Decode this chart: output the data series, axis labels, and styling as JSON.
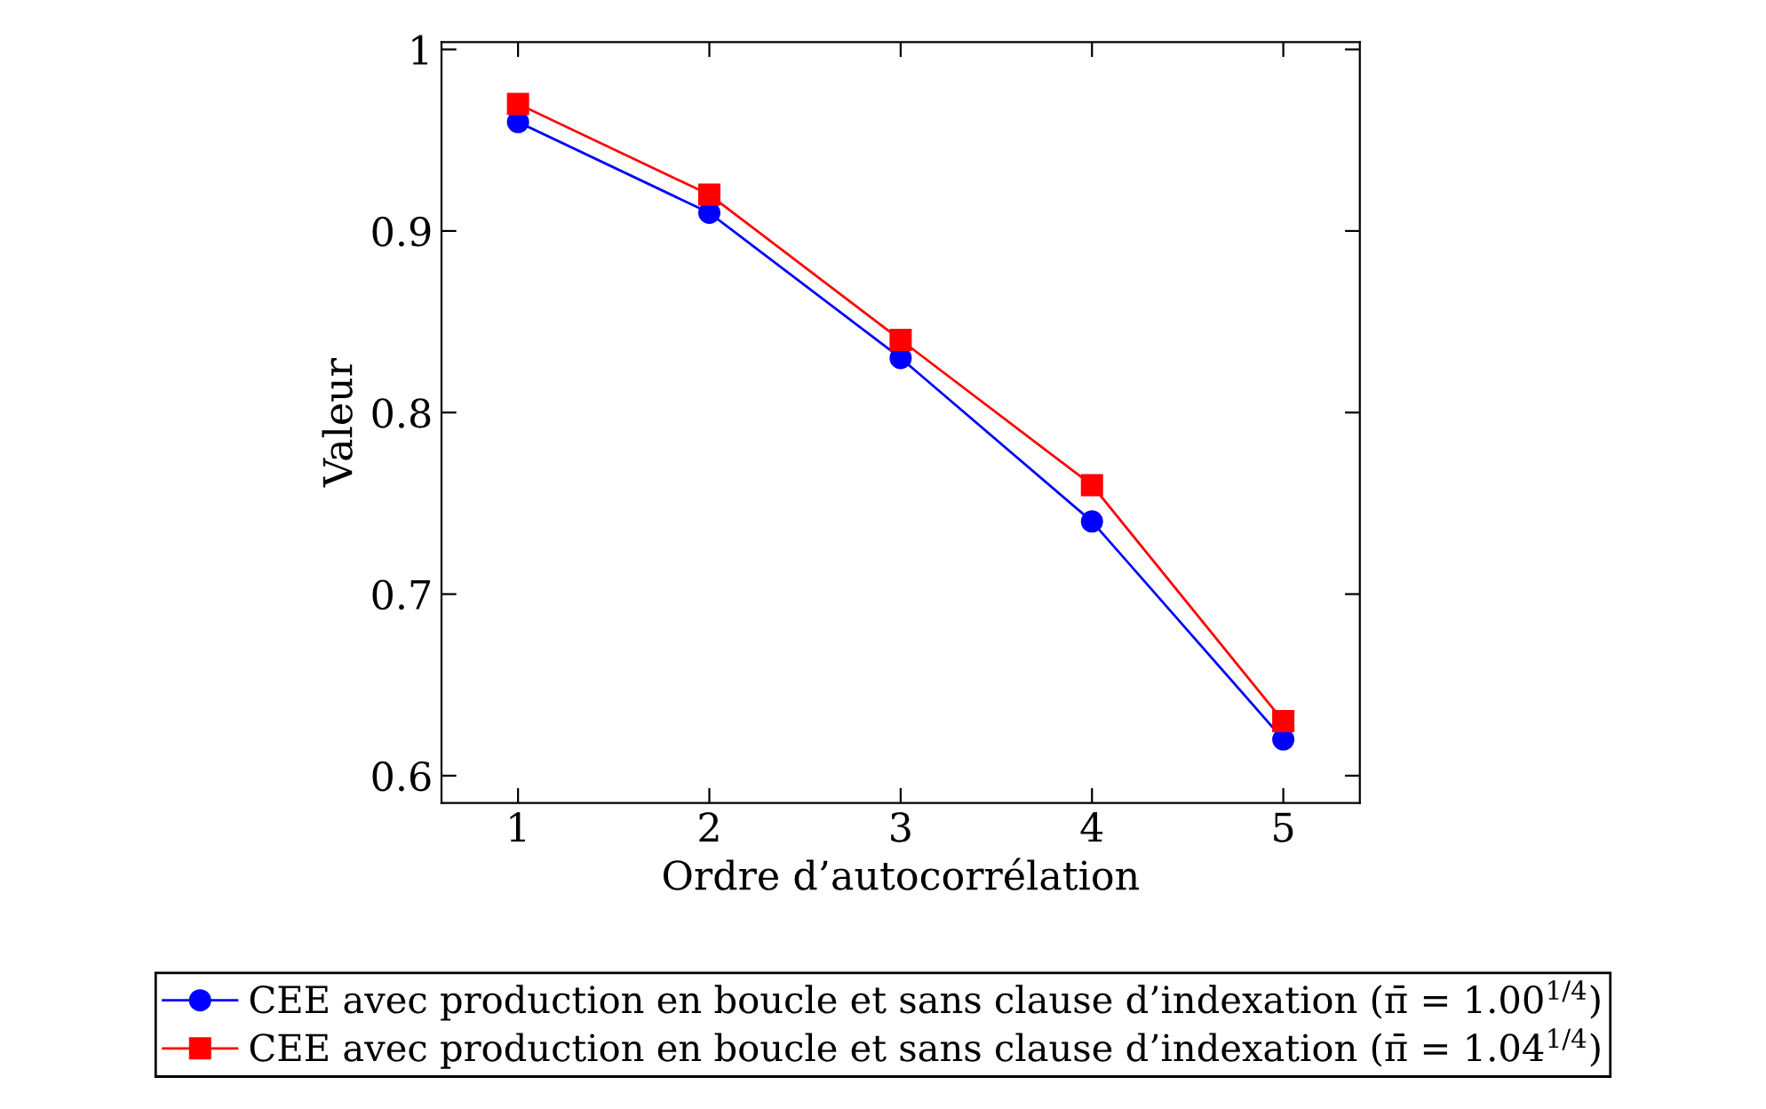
{
  "chart_data": {
    "type": "line",
    "xlabel": "Ordre d’autocorrélation",
    "ylabel": "Valeur",
    "x": [
      1,
      2,
      3,
      4,
      5
    ],
    "series": [
      {
        "name": "CEE avec production en boucle et sans clause d’indexation (π̄ = 1.00$^{1/4}$)",
        "color": "#0000ff",
        "marker": "circle",
        "values": [
          0.96,
          0.91,
          0.83,
          0.74,
          0.62
        ]
      },
      {
        "name": "CEE avec production en boucle et sans clause d’indexation (π̄ = 1.04$^{1/4}$)",
        "color": "#ff0000",
        "marker": "square",
        "values": [
          0.97,
          0.92,
          0.84,
          0.76,
          0.63
        ]
      }
    ],
    "xlim": [
      0.6,
      5.4
    ],
    "xticks": [
      1,
      2,
      3,
      4,
      5
    ],
    "ylim": [
      0.585,
      1.004
    ],
    "yticks": [
      0.6,
      0.7,
      0.8,
      0.9,
      1
    ],
    "grid": false,
    "legend": "bottom",
    "line_style": "solid"
  }
}
